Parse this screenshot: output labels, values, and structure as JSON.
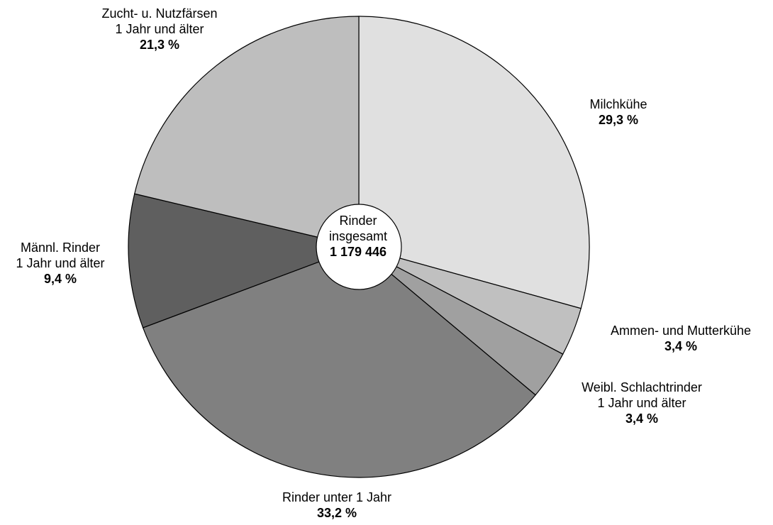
{
  "chart_data": {
    "type": "pie",
    "title": "",
    "center": {
      "line1": "Rinder",
      "line2": "insgesamt",
      "total": "1 179 446"
    },
    "slices": [
      {
        "label_lines": [
          "Milchkühe"
        ],
        "value": 29.3,
        "percent_label": "29,3 %",
        "color": "#e0e0e0"
      },
      {
        "label_lines": [
          "Ammen- und Mutterkühe"
        ],
        "value": 3.4,
        "percent_label": "3,4 %",
        "color": "#c0c0c0"
      },
      {
        "label_lines": [
          "Weibl. Schlachtrinder",
          "1 Jahr und älter"
        ],
        "value": 3.4,
        "percent_label": "3,4 %",
        "color": "#a0a0a0"
      },
      {
        "label_lines": [
          "Rinder unter 1 Jahr"
        ],
        "value": 33.2,
        "percent_label": "33,2 %",
        "color": "#808080"
      },
      {
        "label_lines": [
          "Männl. Rinder",
          "1 Jahr und älter"
        ],
        "value": 9.4,
        "percent_label": "9,4 %",
        "color": "#5f5f5f"
      },
      {
        "label_lines": [
          "Zucht- u. Nutzfärsen",
          "1 Jahr und älter"
        ],
        "value": 21.3,
        "percent_label": "21,3 %",
        "color": "#bebebe"
      }
    ]
  }
}
